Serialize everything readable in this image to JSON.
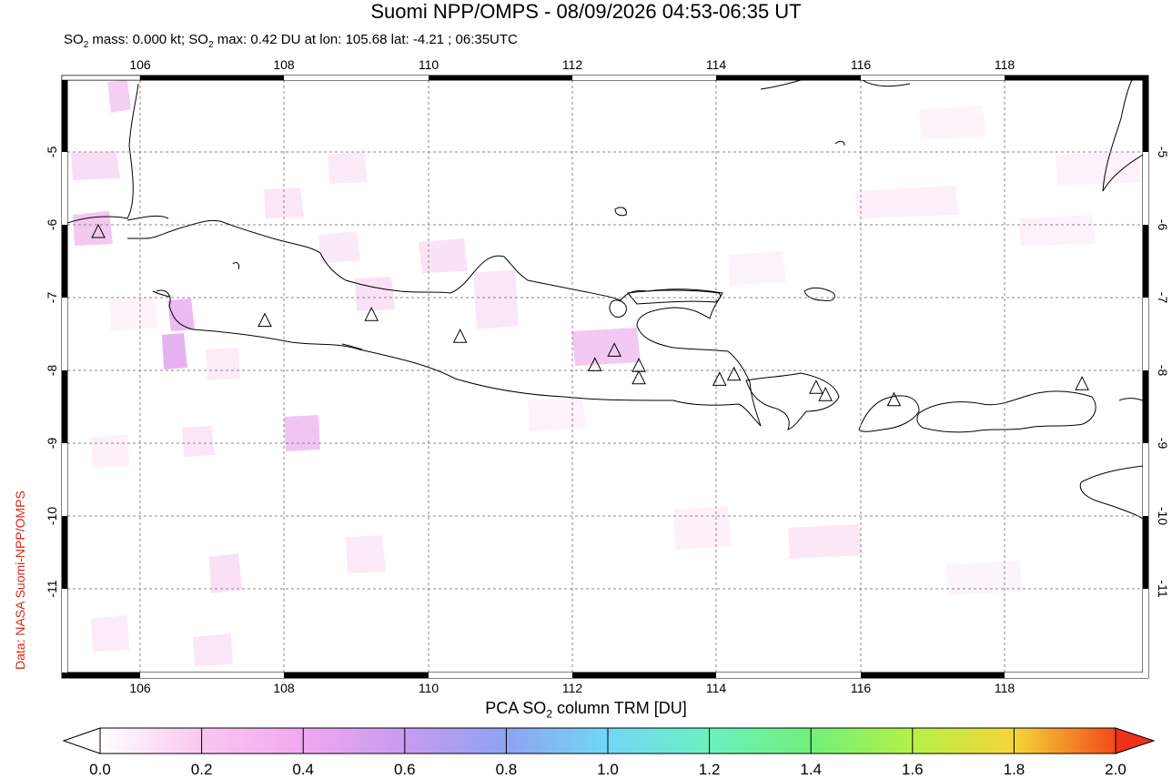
{
  "title": "Suomi NPP/OMPS - 08/09/2026 04:53-06:35 UT",
  "subtitle": {
    "prefix": "SO",
    "sub": "2",
    "mid": " mass: 0.000 kt; SO",
    "sub2": "2",
    "rest": " max: 0.42 DU at lon: 105.68 lat: -4.21 ; 06:35UTC"
  },
  "credit": "Data: NASA Suomi-NPP/OMPS",
  "map": {
    "lon_ticks": [
      "106",
      "108",
      "110",
      "112",
      "114",
      "116",
      "118"
    ],
    "lat_ticks": [
      "-5",
      "-6",
      "-7",
      "-8",
      "-9",
      "-10",
      "-11"
    ],
    "lon_range": [
      104.9,
      120.0
    ],
    "lat_range": [
      -4.0,
      -12.0
    ],
    "grid": true
  },
  "colorbar": {
    "title_prefix": "PCA SO",
    "title_sub": "2",
    "title_rest": " column TRM [DU]",
    "ticks": [
      "0.0",
      "0.2",
      "0.4",
      "0.6",
      "0.8",
      "1.0",
      "1.2",
      "1.4",
      "1.6",
      "1.8",
      "2.0"
    ],
    "colors": [
      "#ffffff",
      "#f9c7ef",
      "#e9a6f2",
      "#c79bf0",
      "#8fa3f2",
      "#70d8f5",
      "#6cf0c0",
      "#70f07a",
      "#b6f048",
      "#f6d63a",
      "#f28020",
      "#e82010"
    ]
  },
  "volcanoes": [
    {
      "lon": 105.42,
      "lat": -6.1
    },
    {
      "lon": 107.73,
      "lat": -7.32
    },
    {
      "lon": 109.21,
      "lat": -7.24
    },
    {
      "lon": 110.44,
      "lat": -7.54
    },
    {
      "lon": 112.31,
      "lat": -7.93
    },
    {
      "lon": 112.58,
      "lat": -7.73
    },
    {
      "lon": 112.92,
      "lat": -7.94
    },
    {
      "lon": 112.92,
      "lat": -8.11
    },
    {
      "lon": 114.04,
      "lat": -8.13
    },
    {
      "lon": 114.24,
      "lat": -8.06
    },
    {
      "lon": 115.38,
      "lat": -8.24
    },
    {
      "lon": 115.51,
      "lat": -8.34
    },
    {
      "lon": 116.46,
      "lat": -8.41
    },
    {
      "lon": 119.07,
      "lat": -8.19
    }
  ]
}
